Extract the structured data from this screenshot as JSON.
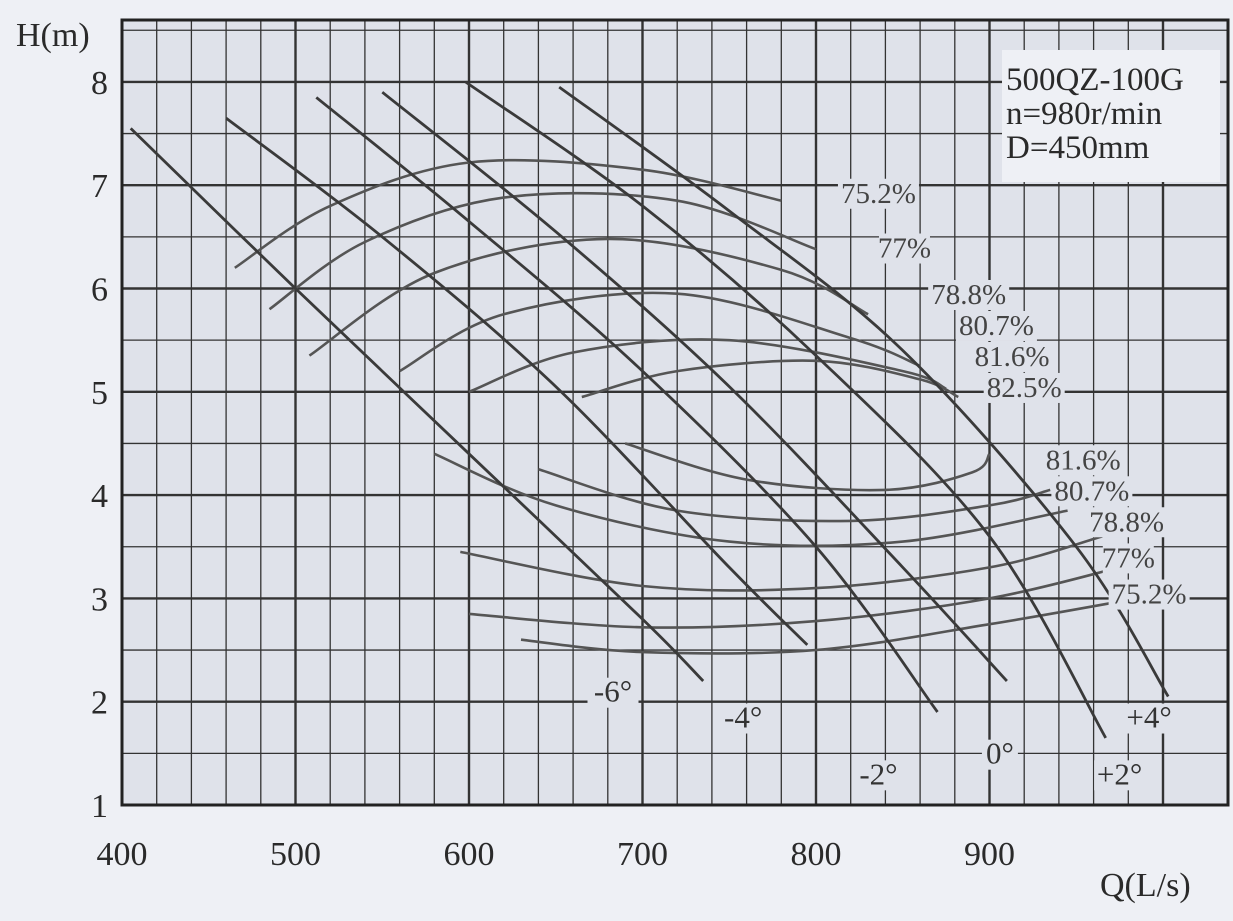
{
  "chart_data": {
    "type": "line",
    "xlabel": "Q(L/s)",
    "ylabel": "H(m)",
    "xlim": [
      400,
      990
    ],
    "ylim": [
      1,
      8.5
    ],
    "x_ticks": [
      400,
      500,
      600,
      700,
      800,
      900
    ],
    "y_ticks": [
      1,
      2,
      3,
      4,
      5,
      6,
      7,
      8
    ],
    "grid": true,
    "info": [
      "500QZ-100G",
      "n=980r/min",
      "D=450mm"
    ],
    "blade_angle_curves": [
      {
        "name": "-6°",
        "points": [
          [
            405,
            7.55
          ],
          [
            500,
            6.0
          ],
          [
            600,
            4.4
          ],
          [
            700,
            2.8
          ],
          [
            735,
            2.2
          ]
        ]
      },
      {
        "name": "-4°",
        "points": [
          [
            460,
            7.65
          ],
          [
            550,
            6.5
          ],
          [
            650,
            5.05
          ],
          [
            750,
            3.3
          ],
          [
            795,
            2.55
          ]
        ]
      },
      {
        "name": "-2°",
        "points": [
          [
            512,
            7.85
          ],
          [
            600,
            6.65
          ],
          [
            700,
            5.2
          ],
          [
            800,
            3.5
          ],
          [
            870,
            1.9
          ]
        ]
      },
      {
        "name": "0°",
        "points": [
          [
            550,
            7.9
          ],
          [
            650,
            6.55
          ],
          [
            750,
            5.05
          ],
          [
            850,
            3.3
          ],
          [
            910,
            2.2
          ]
        ]
      },
      {
        "name": "+2°",
        "points": [
          [
            598,
            8.0
          ],
          [
            700,
            6.8
          ],
          [
            800,
            5.35
          ],
          [
            900,
            3.6
          ],
          [
            967,
            1.65
          ]
        ]
      },
      {
        "name": "+4°",
        "points": [
          [
            652,
            7.95
          ],
          [
            750,
            6.75
          ],
          [
            850,
            5.4
          ],
          [
            950,
            3.5
          ],
          [
            1003,
            2.05
          ]
        ]
      }
    ],
    "angle_label_positions": [
      {
        "name": "-6°",
        "x": 683,
        "y": 2.0
      },
      {
        "name": "-4°",
        "x": 758,
        "y": 1.75
      },
      {
        "name": "-2°",
        "x": 836,
        "y": 1.2
      },
      {
        "name": "0°",
        "x": 906,
        "y": 1.4
      },
      {
        "name": "+2°",
        "x": 975,
        "y": 1.2
      },
      {
        "name": "+4°",
        "x": 992,
        "y": 1.75
      }
    ],
    "efficiency_contours": [
      {
        "name": "75.2%",
        "upper": [
          [
            465,
            6.2
          ],
          [
            520,
            6.8
          ],
          [
            600,
            7.22
          ],
          [
            700,
            7.15
          ],
          [
            780,
            6.85
          ]
        ],
        "lower": [
          [
            630,
            2.6
          ],
          [
            700,
            2.48
          ],
          [
            800,
            2.5
          ],
          [
            900,
            2.75
          ],
          [
            985,
            3.0
          ]
        ]
      },
      {
        "name": "77%",
        "upper": [
          [
            485,
            5.8
          ],
          [
            540,
            6.45
          ],
          [
            620,
            6.88
          ],
          [
            720,
            6.85
          ],
          [
            800,
            6.38
          ]
        ],
        "lower": [
          [
            600,
            2.85
          ],
          [
            700,
            2.72
          ],
          [
            800,
            2.78
          ],
          [
            900,
            3.0
          ],
          [
            975,
            3.3
          ]
        ]
      },
      {
        "name": "78.8%",
        "upper": [
          [
            508,
            5.35
          ],
          [
            580,
            6.15
          ],
          [
            680,
            6.48
          ],
          [
            780,
            6.18
          ],
          [
            830,
            5.75
          ]
        ],
        "lower": [
          [
            595,
            3.45
          ],
          [
            700,
            3.12
          ],
          [
            800,
            3.1
          ],
          [
            900,
            3.3
          ],
          [
            965,
            3.6
          ]
        ]
      },
      {
        "name": "80.7%",
        "upper": [
          [
            560,
            5.2
          ],
          [
            620,
            5.75
          ],
          [
            720,
            5.95
          ],
          [
            820,
            5.52
          ],
          [
            860,
            5.25
          ]
        ],
        "lower": [
          [
            580,
            4.4
          ],
          [
            650,
            3.9
          ],
          [
            750,
            3.55
          ],
          [
            850,
            3.55
          ],
          [
            945,
            3.85
          ]
        ]
      },
      {
        "name": "81.6%",
        "upper": [
          [
            600,
            5.0
          ],
          [
            660,
            5.38
          ],
          [
            750,
            5.5
          ],
          [
            850,
            5.2
          ],
          [
            875,
            5.03
          ]
        ],
        "lower": [
          [
            640,
            4.25
          ],
          [
            720,
            3.85
          ],
          [
            820,
            3.75
          ],
          [
            900,
            3.9
          ],
          [
            935,
            4.05
          ]
        ]
      },
      {
        "name": "82.5%",
        "upper": [
          [
            665,
            4.95
          ],
          [
            720,
            5.2
          ],
          [
            800,
            5.3
          ],
          [
            860,
            5.12
          ],
          [
            882,
            4.95
          ]
        ],
        "lower": [
          [
            690,
            4.5
          ],
          [
            760,
            4.15
          ],
          [
            840,
            4.05
          ],
          [
            890,
            4.22
          ],
          [
            900,
            4.4
          ]
        ]
      }
    ],
    "upper_eff_labels": [
      {
        "name": "75.2%",
        "x": 836,
        "y": 6.83
      },
      {
        "name": "77%",
        "x": 851,
        "y": 6.3
      },
      {
        "name": "78.8%",
        "x": 888,
        "y": 5.85
      },
      {
        "name": "80.7%",
        "x": 904,
        "y": 5.55
      },
      {
        "name": "81.6%",
        "x": 913,
        "y": 5.25
      },
      {
        "name": "82.5%",
        "x": 920,
        "y": 4.95
      }
    ],
    "lower_eff_labels": [
      {
        "name": "81.6%",
        "x": 954,
        "y": 4.25
      },
      {
        "name": "80.7%",
        "x": 959,
        "y": 3.95
      },
      {
        "name": "78.8%",
        "x": 979,
        "y": 3.65
      },
      {
        "name": "77%",
        "x": 980,
        "y": 3.3
      },
      {
        "name": "75.2%",
        "x": 992,
        "y": 2.95
      }
    ]
  }
}
